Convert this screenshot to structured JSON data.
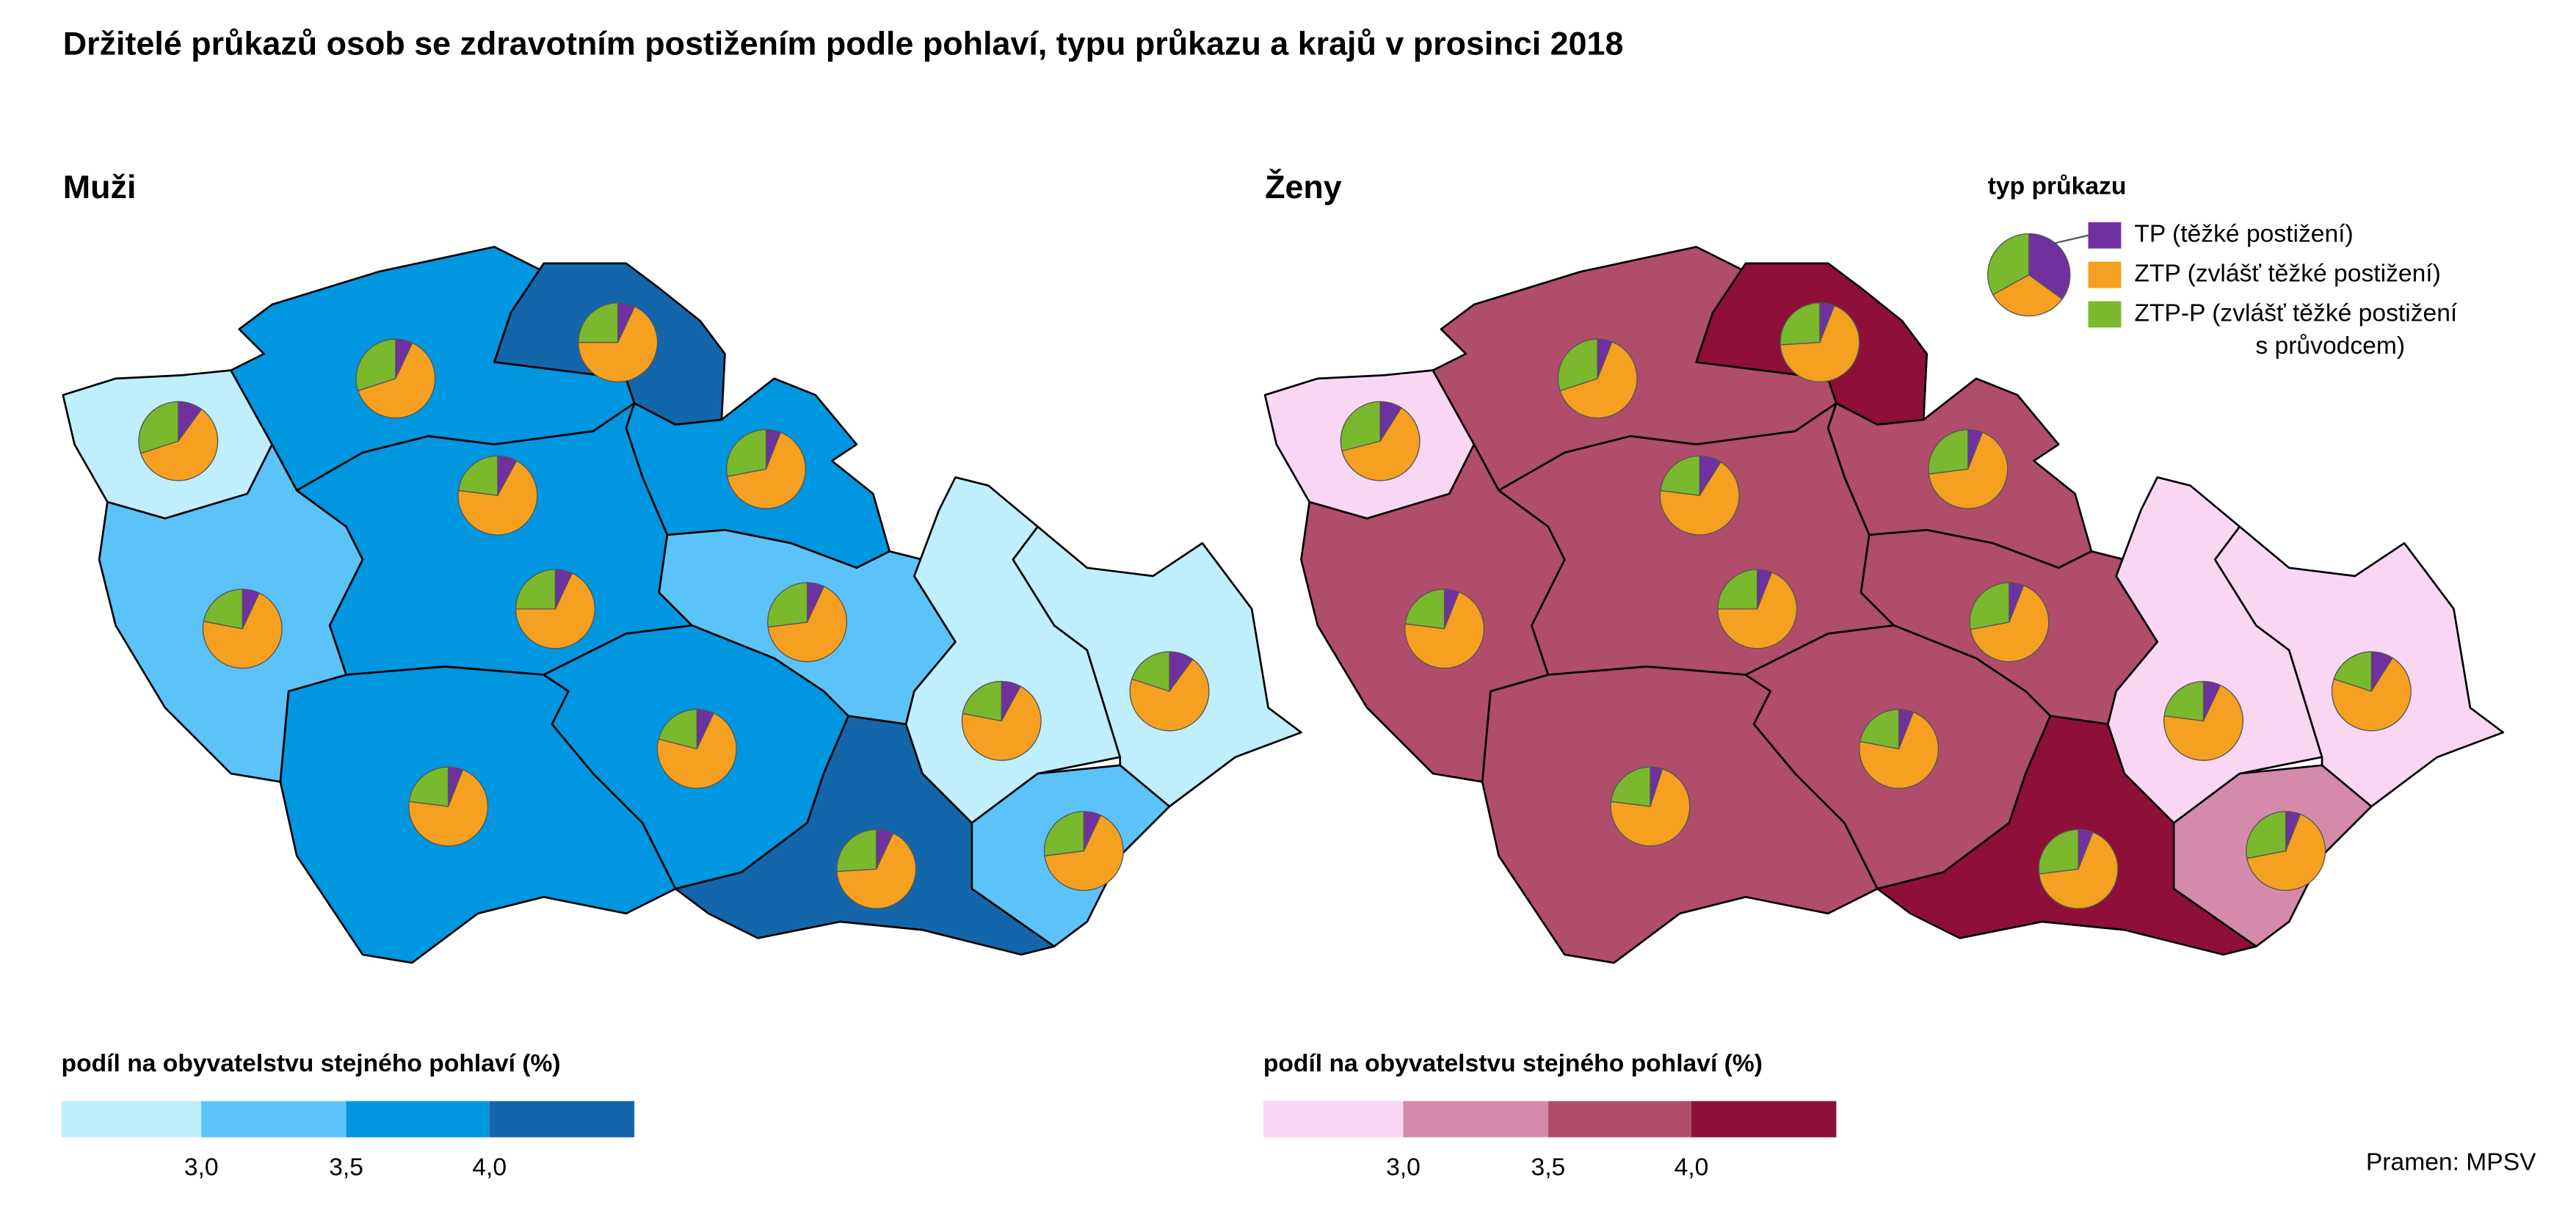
{
  "title": "Držitelé průkazů osob se zdravotním postižením podle pohlaví, typu průkazu a krajů v prosinci 2018",
  "panels": [
    {
      "title": "Muži",
      "legend_title": "podíl na obyvatelstvu stejného pohlaví (%)",
      "colors": [
        "#bfeefc",
        "#5cc3f8",
        "#0096e0",
        "#1466aa"
      ],
      "breaks": [
        {
          "value": 3,
          "label": "3,0"
        },
        {
          "value": 3.5,
          "label": "3,5"
        },
        {
          "value": 4,
          "label": "4,0"
        }
      ],
      "regions": [
        {
          "value": 2.8,
          "pie": [
            10,
            60,
            30
          ]
        },
        {
          "value": 3.7,
          "pie": [
            7,
            63,
            30
          ]
        },
        {
          "value": 4.2,
          "pie": [
            7,
            68,
            25
          ]
        },
        {
          "value": 3.7,
          "pie": [
            6,
            66,
            28
          ]
        },
        {
          "value": 2.8,
          "pie": [
            8,
            69,
            23
          ]
        },
        {
          "value": 3.7,
          "pie": [
            7,
            68,
            25
          ]
        },
        {
          "value": 3.2,
          "pie": [
            7,
            71,
            22
          ]
        },
        {
          "value": 3.7,
          "pie": [
            6,
            71,
            23
          ]
        },
        {
          "value": 3.2,
          "pie": [
            7,
            66,
            27
          ]
        },
        {
          "value": 3.7,
          "pie": [
            7,
            72,
            21
          ]
        },
        {
          "value": 4.2,
          "pie": [
            7,
            67,
            26
          ]
        },
        {
          "value": 3.2,
          "pie": [
            7,
            66,
            27
          ]
        },
        {
          "value": 2.8,
          "pie": [
            8,
            70,
            22
          ]
        },
        {
          "value": 2.8,
          "pie": [
            10,
            70,
            20
          ]
        }
      ]
    },
    {
      "title": "Ženy",
      "legend_title": "podíl na obyvatelstvu stejného pohlaví (%)",
      "colors": [
        "#f9d7f3",
        "#d68aab",
        "#b04d6a",
        "#8e1038"
      ],
      "breaks": [
        {
          "value": 3,
          "label": "3,0"
        },
        {
          "value": 3.5,
          "label": "3,5"
        },
        {
          "value": 4,
          "label": "4,0"
        }
      ],
      "regions": [
        {
          "value": 2.8,
          "pie": [
            9,
            62,
            29
          ]
        },
        {
          "value": 3.7,
          "pie": [
            6,
            64,
            30
          ]
        },
        {
          "value": 4.2,
          "pie": [
            6,
            68,
            26
          ]
        },
        {
          "value": 3.7,
          "pie": [
            6,
            67,
            27
          ]
        },
        {
          "value": 2.8,
          "pie": [
            9,
            68,
            23
          ]
        },
        {
          "value": 3.7,
          "pie": [
            6,
            69,
            25
          ]
        },
        {
          "value": 3.7,
          "pie": [
            6,
            71,
            23
          ]
        },
        {
          "value": 3.7,
          "pie": [
            5,
            72,
            23
          ]
        },
        {
          "value": 3.7,
          "pie": [
            6,
            66,
            28
          ]
        },
        {
          "value": 3.7,
          "pie": [
            6,
            72,
            22
          ]
        },
        {
          "value": 4.2,
          "pie": [
            6,
            67,
            27
          ]
        },
        {
          "value": 3.2,
          "pie": [
            6,
            66,
            28
          ]
        },
        {
          "value": 2.8,
          "pie": [
            7,
            70,
            23
          ]
        },
        {
          "value": 2.8,
          "pie": [
            9,
            71,
            20
          ]
        }
      ]
    }
  ],
  "pie_legend": {
    "title": "typ průkazu",
    "example": [
      35,
      32,
      33
    ],
    "items": [
      {
        "color": "#7030a0",
        "lines": [
          "TP (těžké postižení)"
        ]
      },
      {
        "color": "#f5a020",
        "lines": [
          "ZTP (zvlášť těžké postižení)"
        ]
      },
      {
        "color": "#7ab82e",
        "lines": [
          "ZTP-P (zvlášť těžké postižení",
          "s průvodcem)"
        ]
      }
    ]
  },
  "source": "Pramen: MPSV"
}
